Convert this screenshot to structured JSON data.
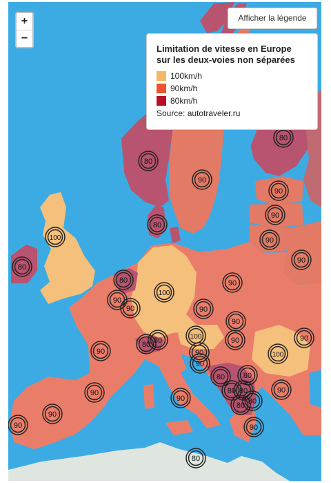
{
  "controls": {
    "zoom_in": "+",
    "zoom_out": "−",
    "legend_toggle": "Afficher la légende"
  },
  "legend": {
    "title": "Limitation de vitesse en Europe sur les deux-voies non séparées",
    "items": [
      {
        "label": "100km/h",
        "color": "#f5b867"
      },
      {
        "label": "90km/h",
        "color": "#f0512e"
      },
      {
        "label": "80km/h",
        "color": "#b8102a"
      }
    ],
    "source": "Source: autotraveler.ru"
  },
  "markers": [
    {
      "label": "80",
      "country": "Finland"
    },
    {
      "label": "80",
      "country": "Norway"
    },
    {
      "label": "90",
      "country": "Sweden"
    },
    {
      "label": "90",
      "country": "Estonia"
    },
    {
      "label": "90",
      "country": "Latvia"
    },
    {
      "label": "80",
      "country": "Denmark"
    },
    {
      "label": "90",
      "country": "Lithuania"
    },
    {
      "label": "100",
      "country": "United Kingdom"
    },
    {
      "label": "90",
      "country": "Belarus"
    },
    {
      "label": "80",
      "country": "Ireland"
    },
    {
      "label": "80",
      "country": "Netherlands"
    },
    {
      "label": "100",
      "country": "Germany"
    },
    {
      "label": "90",
      "country": "Poland"
    },
    {
      "label": "90",
      "country": "Belgium"
    },
    {
      "label": "90",
      "country": "Luxembourg"
    },
    {
      "label": "90",
      "country": "Czechia"
    },
    {
      "label": "90",
      "country": "Slovakia"
    },
    {
      "label": "90",
      "country": "Hungary"
    },
    {
      "label": "100",
      "country": "Austria"
    },
    {
      "label": "90",
      "country": "Moldova"
    },
    {
      "label": "80",
      "country": "Switzerland"
    },
    {
      "label": "80",
      "country": "Liechtenstein"
    },
    {
      "label": "90",
      "country": "France"
    },
    {
      "label": "90",
      "country": "Slovenia"
    },
    {
      "label": "90",
      "country": "Croatia"
    },
    {
      "label": "100",
      "country": "Romania"
    },
    {
      "label": "80",
      "country": "Bosnia and Herzegovina"
    },
    {
      "label": "80",
      "country": "Serbia"
    },
    {
      "label": "80",
      "country": "Montenegro"
    },
    {
      "label": "80",
      "country": "Kosovo"
    },
    {
      "label": "90",
      "country": "Bulgaria"
    },
    {
      "label": "80",
      "country": "North Macedonia"
    },
    {
      "label": "80",
      "country": "Albania"
    },
    {
      "label": "90",
      "country": "Greece"
    },
    {
      "label": "90",
      "country": "Italy"
    },
    {
      "label": "90",
      "country": "Spain"
    },
    {
      "label": "90",
      "country": "Spain (north)"
    },
    {
      "label": "90",
      "country": "Portugal"
    },
    {
      "label": "80",
      "country": "Malta"
    }
  ]
}
